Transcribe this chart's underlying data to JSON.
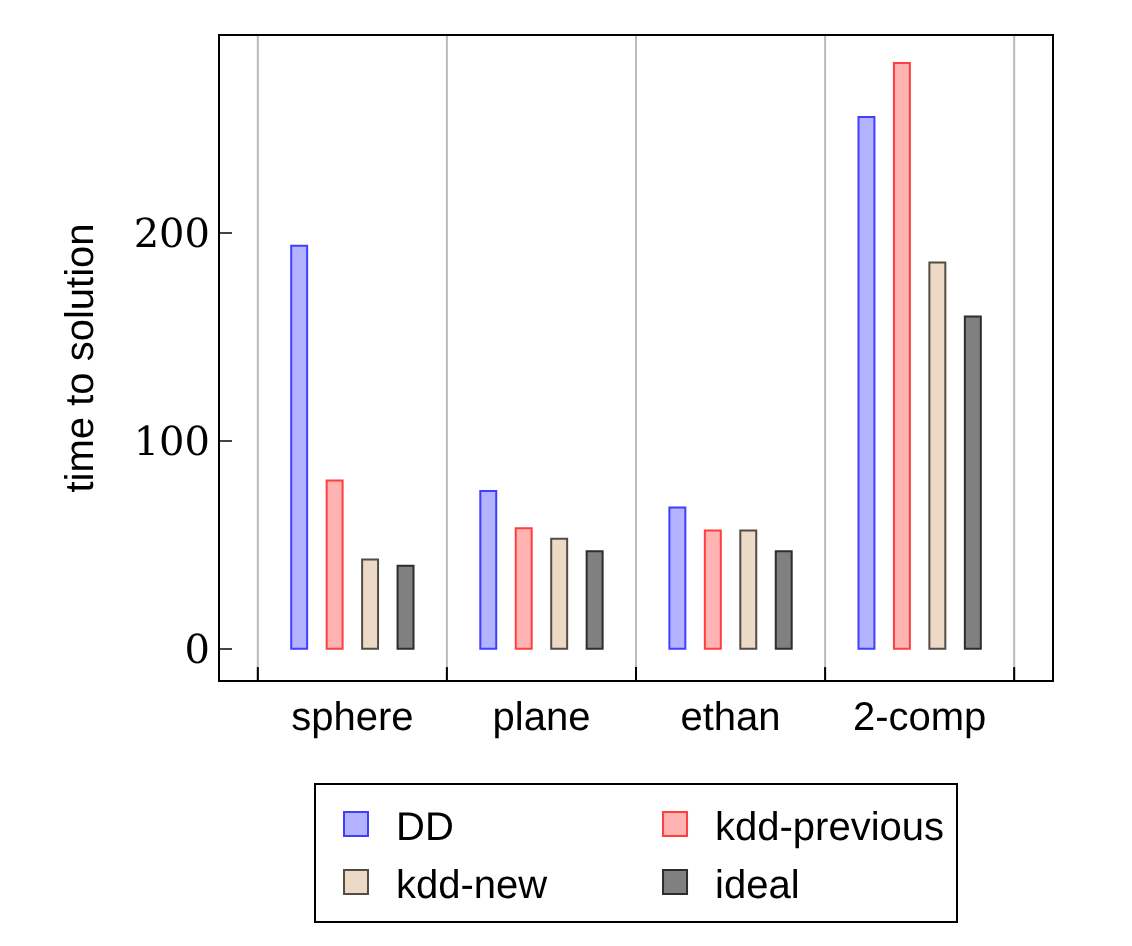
{
  "chart_data": {
    "type": "bar",
    "ylabel": "time to solution",
    "categories": [
      "sphere",
      "plane",
      "ethan",
      "2-comp"
    ],
    "series": [
      {
        "name": "DD",
        "color": "#b3b3ff",
        "values": [
          194,
          76,
          68,
          256
        ]
      },
      {
        "name": "kdd-previous",
        "color": "#ffb3b3",
        "values": [
          81,
          58,
          57,
          282
        ]
      },
      {
        "name": "kdd-new",
        "color": "#ecd9c6",
        "values": [
          43,
          53,
          57,
          186
        ]
      },
      {
        "name": "ideal",
        "color": "#808080",
        "values": [
          40,
          47,
          47,
          160
        ]
      }
    ],
    "ylim": [
      -15,
      295
    ],
    "yticks": [
      0,
      100,
      200
    ],
    "grid": "x",
    "legend": "bottom"
  }
}
